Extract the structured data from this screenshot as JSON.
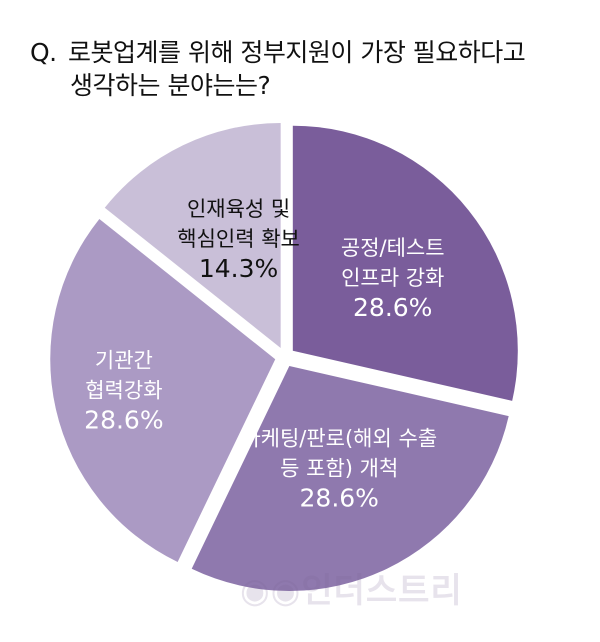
{
  "header": {
    "prefix": "Q.",
    "line1": "로봇업계를 위해 정부지원이 가장 필요하다고",
    "line2": "생각하는 분야는는?"
  },
  "watermark": "◉◉인더스트리",
  "chart_data": {
    "type": "pie",
    "title": "Q. 로봇업계를 위해 정부지원이 가장 필요하다고 생각하는 분야는는?",
    "slices": [
      {
        "label_lines": [
          "공정/테스트",
          "인프라 강화"
        ],
        "value": 28.6,
        "value_label": "28.6%",
        "color": "#7a5d9b"
      },
      {
        "label_lines": [
          "마케팅/판로(해외 수출",
          "등 포함) 개척"
        ],
        "value": 28.6,
        "value_label": "28.6%",
        "color": "#8f79ae"
      },
      {
        "label_lines": [
          "기관간",
          "협력강화"
        ],
        "value": 28.6,
        "value_label": "28.6%",
        "color": "#ab9ac4"
      },
      {
        "label_lines": [
          "인재육성 및",
          "핵심인력 확보"
        ],
        "value": 14.3,
        "value_label": "14.3%",
        "color": "#c9bfd8"
      }
    ]
  }
}
